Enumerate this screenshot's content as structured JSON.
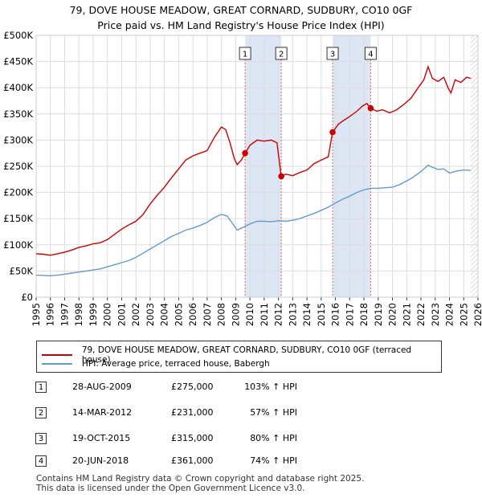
{
  "title": {
    "line1": "79, DOVE HOUSE MEADOW, GREAT CORNARD, SUDBURY, CO10 0GF",
    "line2": "Price paid vs. HM Land Registry's House Price Index (HPI)"
  },
  "colors": {
    "property": "#cc0000",
    "hpi": "#6699cc",
    "shade": "#dde6f5",
    "marker_line": "#e06666"
  },
  "chart_data": {
    "type": "line",
    "ylim": [
      0,
      500000
    ],
    "xlim": [
      1995,
      2026
    ],
    "y_ticks": [
      0,
      50000,
      100000,
      150000,
      200000,
      250000,
      300000,
      350000,
      400000,
      450000,
      500000
    ],
    "y_tick_labels": [
      "£0",
      "£50K",
      "£100K",
      "£150K",
      "£200K",
      "£250K",
      "£300K",
      "£350K",
      "£400K",
      "£450K",
      "£500K"
    ],
    "x_ticks": [
      1995,
      1996,
      1997,
      1998,
      1999,
      2000,
      2001,
      2002,
      2003,
      2004,
      2005,
      2006,
      2007,
      2008,
      2009,
      2010,
      2011,
      2012,
      2013,
      2014,
      2015,
      2016,
      2017,
      2018,
      2019,
      2020,
      2021,
      2022,
      2023,
      2024,
      2025,
      2026
    ],
    "x_tick_labels": [
      "1995",
      "1996",
      "1997",
      "1998",
      "1999",
      "2000",
      "2001",
      "2002",
      "2003",
      "2004",
      "2005",
      "2006",
      "2007",
      "2008",
      "2009",
      "2010",
      "2011",
      "2012",
      "2013",
      "2014",
      "2015",
      "2016",
      "2017",
      "2018",
      "2019",
      "2020",
      "2021",
      "2022",
      "2023",
      "2024",
      "2025",
      "2026"
    ],
    "series": [
      {
        "name": "79, DOVE HOUSE MEADOW, GREAT CORNARD, SUDBURY, CO10 0GF (terraced house)",
        "points": [
          [
            1995,
            83000
          ],
          [
            1995.5,
            82000
          ],
          [
            1996,
            80000
          ],
          [
            1996.5,
            83000
          ],
          [
            1997,
            86000
          ],
          [
            1997.5,
            90000
          ],
          [
            1998,
            95000
          ],
          [
            1998.5,
            98000
          ],
          [
            1999,
            102000
          ],
          [
            1999.5,
            104000
          ],
          [
            2000,
            110000
          ],
          [
            2000.5,
            120000
          ],
          [
            2001,
            130000
          ],
          [
            2001.5,
            138000
          ],
          [
            2002,
            145000
          ],
          [
            2002.5,
            158000
          ],
          [
            2003,
            178000
          ],
          [
            2003.5,
            195000
          ],
          [
            2004,
            210000
          ],
          [
            2004.5,
            228000
          ],
          [
            2005,
            245000
          ],
          [
            2005.5,
            262000
          ],
          [
            2006,
            270000
          ],
          [
            2006.5,
            275000
          ],
          [
            2007,
            280000
          ],
          [
            2007.5,
            305000
          ],
          [
            2008,
            325000
          ],
          [
            2008.3,
            320000
          ],
          [
            2008.6,
            295000
          ],
          [
            2008.9,
            265000
          ],
          [
            2009.1,
            253000
          ],
          [
            2009.4,
            262000
          ],
          [
            2009.66,
            275000
          ],
          [
            2010,
            290000
          ],
          [
            2010.5,
            300000
          ],
          [
            2011,
            298000
          ],
          [
            2011.5,
            300000
          ],
          [
            2011.9,
            295000
          ],
          [
            2012.19,
            231000
          ],
          [
            2012.5,
            235000
          ],
          [
            2013,
            232000
          ],
          [
            2013.5,
            238000
          ],
          [
            2014,
            243000
          ],
          [
            2014.5,
            255000
          ],
          [
            2015,
            262000
          ],
          [
            2015.5,
            268000
          ],
          [
            2015.79,
            315000
          ],
          [
            2016.2,
            330000
          ],
          [
            2016.6,
            338000
          ],
          [
            2017,
            345000
          ],
          [
            2017.5,
            355000
          ],
          [
            2017.9,
            365000
          ],
          [
            2018.2,
            370000
          ],
          [
            2018.47,
            361000
          ],
          [
            2018.9,
            355000
          ],
          [
            2019.3,
            358000
          ],
          [
            2019.8,
            352000
          ],
          [
            2020.3,
            358000
          ],
          [
            2020.8,
            368000
          ],
          [
            2021.3,
            380000
          ],
          [
            2021.8,
            400000
          ],
          [
            2022.2,
            415000
          ],
          [
            2022.5,
            440000
          ],
          [
            2022.8,
            418000
          ],
          [
            2023.2,
            412000
          ],
          [
            2023.6,
            420000
          ],
          [
            2023.9,
            400000
          ],
          [
            2024.1,
            390000
          ],
          [
            2024.4,
            415000
          ],
          [
            2024.8,
            410000
          ],
          [
            2025.2,
            420000
          ],
          [
            2025.5,
            418000
          ]
        ]
      },
      {
        "name": "HPI: Average price, terraced house, Babergh",
        "points": [
          [
            1995,
            42000
          ],
          [
            1995.5,
            41500
          ],
          [
            1996,
            41000
          ],
          [
            1996.5,
            42000
          ],
          [
            1997,
            44000
          ],
          [
            1997.5,
            46000
          ],
          [
            1998,
            48000
          ],
          [
            1998.5,
            50000
          ],
          [
            1999,
            52000
          ],
          [
            1999.5,
            54000
          ],
          [
            2000,
            58000
          ],
          [
            2000.5,
            62000
          ],
          [
            2001,
            66000
          ],
          [
            2001.5,
            70000
          ],
          [
            2002,
            76000
          ],
          [
            2002.5,
            84000
          ],
          [
            2003,
            92000
          ],
          [
            2003.5,
            100000
          ],
          [
            2004,
            108000
          ],
          [
            2004.5,
            116000
          ],
          [
            2005,
            122000
          ],
          [
            2005.5,
            128000
          ],
          [
            2006,
            132000
          ],
          [
            2006.5,
            137000
          ],
          [
            2007,
            143000
          ],
          [
            2007.5,
            152000
          ],
          [
            2008,
            158000
          ],
          [
            2008.4,
            155000
          ],
          [
            2008.8,
            140000
          ],
          [
            2009.1,
            128000
          ],
          [
            2009.5,
            133000
          ],
          [
            2010,
            140000
          ],
          [
            2010.5,
            145000
          ],
          [
            2011,
            145000
          ],
          [
            2011.5,
            144000
          ],
          [
            2012,
            146000
          ],
          [
            2012.5,
            145000
          ],
          [
            2013,
            147000
          ],
          [
            2013.5,
            150000
          ],
          [
            2014,
            155000
          ],
          [
            2014.5,
            160000
          ],
          [
            2015,
            166000
          ],
          [
            2015.5,
            172000
          ],
          [
            2016,
            180000
          ],
          [
            2016.5,
            187000
          ],
          [
            2017,
            193000
          ],
          [
            2017.5,
            200000
          ],
          [
            2018,
            205000
          ],
          [
            2018.5,
            208000
          ],
          [
            2019,
            208000
          ],
          [
            2019.5,
            209000
          ],
          [
            2020,
            210000
          ],
          [
            2020.5,
            215000
          ],
          [
            2021,
            222000
          ],
          [
            2021.5,
            230000
          ],
          [
            2022,
            240000
          ],
          [
            2022.5,
            252000
          ],
          [
            2022.8,
            248000
          ],
          [
            2023.2,
            244000
          ],
          [
            2023.6,
            245000
          ],
          [
            2024,
            237000
          ],
          [
            2024.5,
            241000
          ],
          [
            2025,
            243000
          ],
          [
            2025.5,
            242000
          ]
        ]
      }
    ],
    "sales": [
      {
        "n": "1",
        "x": 2009.66,
        "price": 275000,
        "date": "28-AUG-2009",
        "price_label": "£275,000",
        "hpi": "103% ↑ HPI"
      },
      {
        "n": "2",
        "x": 2012.2,
        "price": 231000,
        "date": "14-MAR-2012",
        "price_label": "£231,000",
        "hpi": "57% ↑ HPI"
      },
      {
        "n": "3",
        "x": 2015.8,
        "price": 315000,
        "date": "19-OCT-2015",
        "price_label": "£315,000",
        "hpi": "80% ↑ HPI"
      },
      {
        "n": "4",
        "x": 2018.47,
        "price": 361000,
        "date": "20-JUN-2018",
        "price_label": "£361,000",
        "hpi": "74% ↑ HPI"
      }
    ],
    "shaded_ranges": [
      [
        2009.66,
        2012.2
      ],
      [
        2015.8,
        2018.47
      ]
    ],
    "forecast_start": 2025.5
  },
  "legend": {
    "property_label": "79, DOVE HOUSE MEADOW, GREAT CORNARD, SUDBURY, CO10 0GF (terraced house)",
    "hpi_label": "HPI: Average price, terraced house, Babergh"
  },
  "footer": {
    "line1": "Contains HM Land Registry data © Crown copyright and database right 2025.",
    "line2": "This data is licensed under the Open Government Licence v3.0."
  }
}
